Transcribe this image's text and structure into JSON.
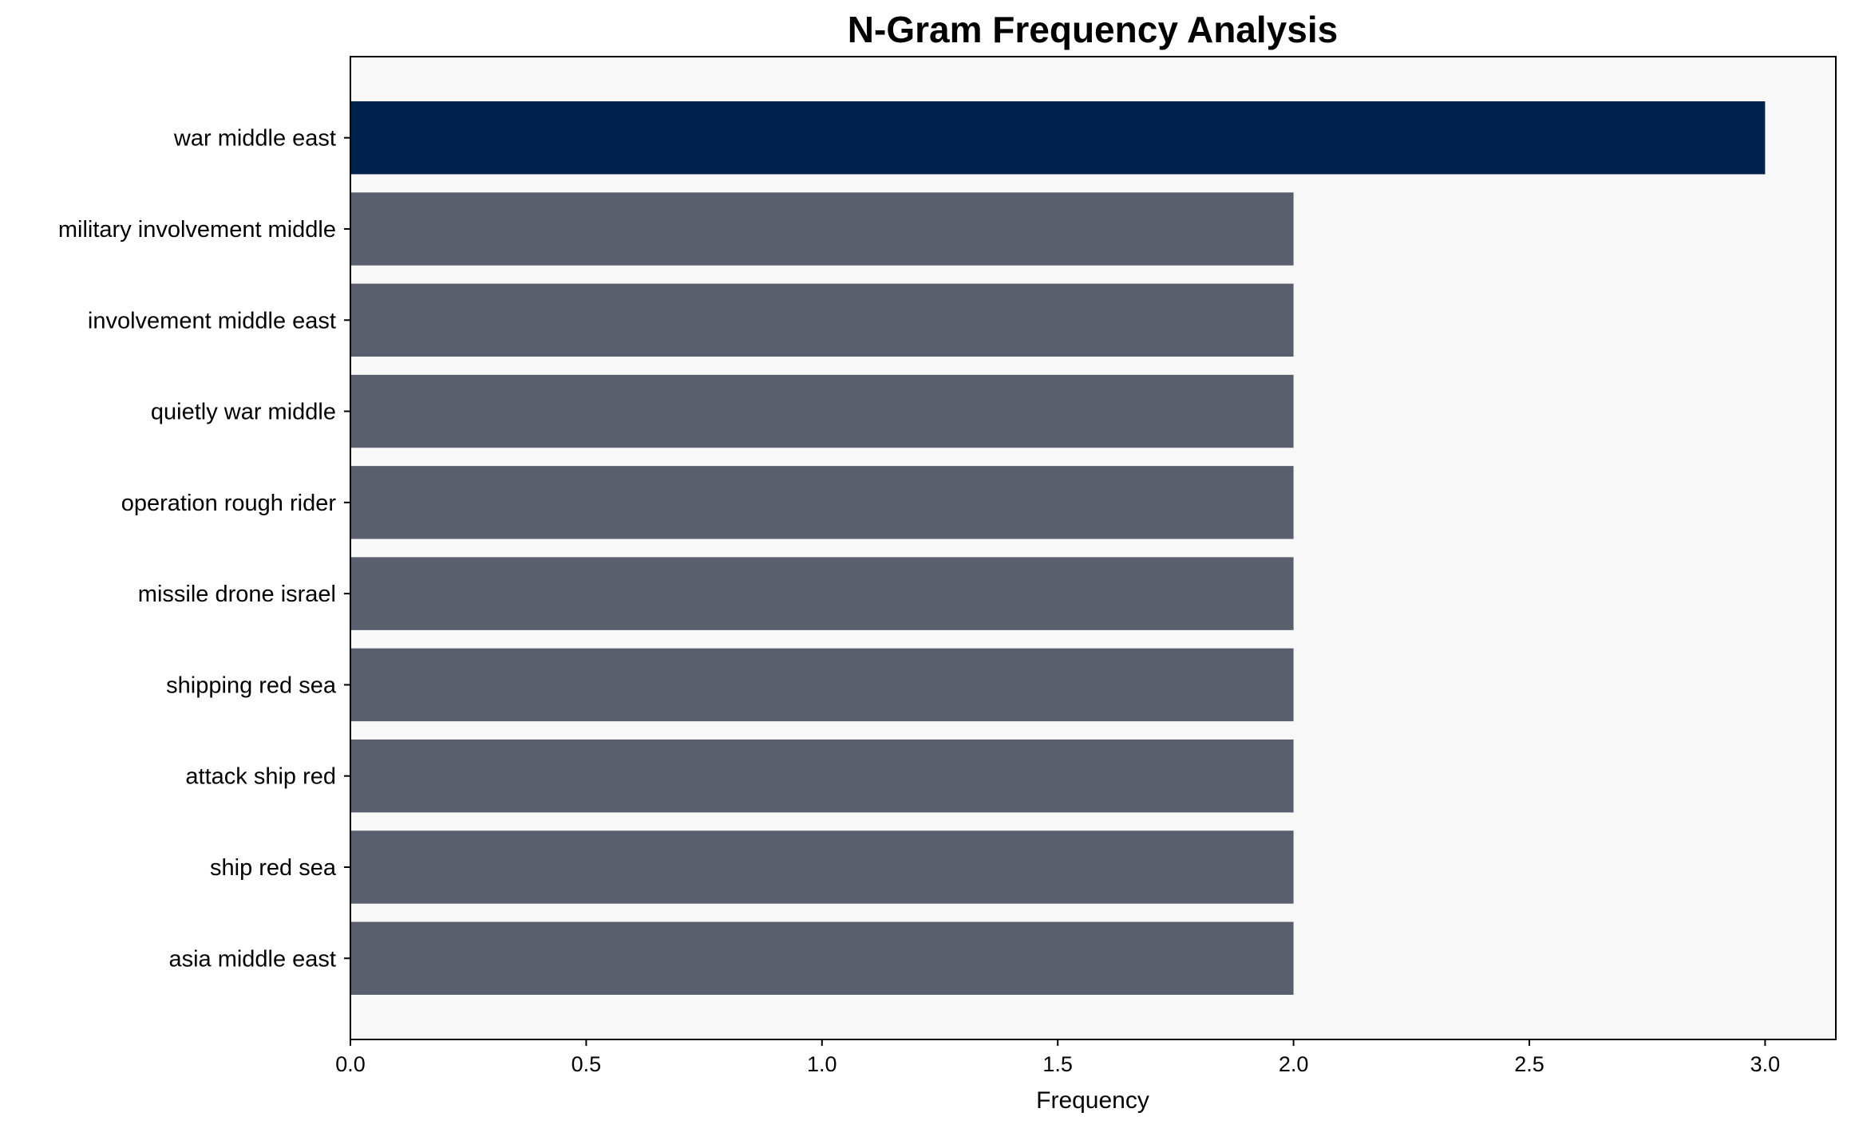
{
  "chart_data": {
    "type": "bar",
    "orientation": "horizontal",
    "title": "N-Gram Frequency Analysis",
    "xlabel": "Frequency",
    "ylabel": "",
    "categories": [
      "war middle east",
      "military involvement middle",
      "involvement middle east",
      "quietly war middle",
      "operation rough rider",
      "missile drone israel",
      "shipping red sea",
      "attack ship red",
      "ship red sea",
      "asia middle east"
    ],
    "values": [
      3,
      2,
      2,
      2,
      2,
      2,
      2,
      2,
      2,
      2
    ],
    "xlim": [
      0,
      3.15
    ],
    "xticks": [
      "0.0",
      "0.5",
      "1.0",
      "1.5",
      "2.0",
      "2.5",
      "3.0"
    ],
    "grid": false,
    "colors": {
      "highlight": "#00224e",
      "default": "#5a5f6e",
      "plot_background": "#f8f8f8"
    }
  }
}
